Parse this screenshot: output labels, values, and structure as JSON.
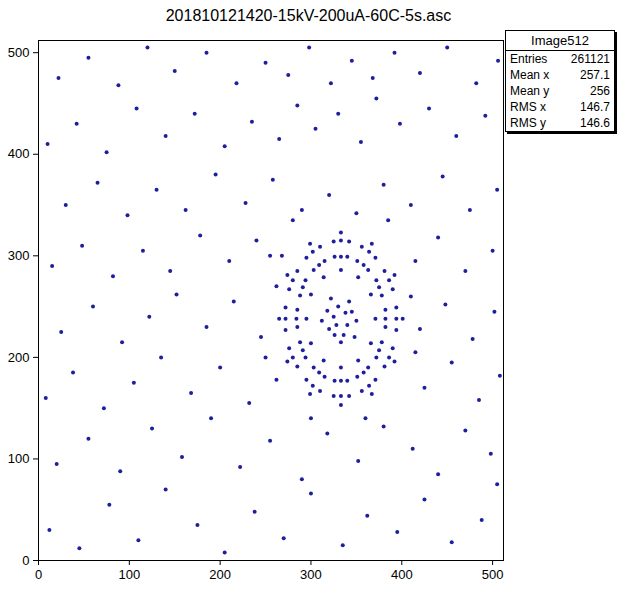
{
  "chart_data": {
    "type": "scatter",
    "title": "201810121420-15kV-200uA-60C-5s.asc",
    "color": "#1f1f9e",
    "marker": "dot",
    "xlim": [
      0,
      512
    ],
    "ylim": [
      0,
      512
    ],
    "xticks": [
      0,
      100,
      200,
      300,
      400,
      500
    ],
    "yticks": [
      0,
      100,
      200,
      300,
      400,
      500
    ],
    "grid": false,
    "stats_box": {
      "title": "Image512",
      "rows": [
        {
          "label": "Entries",
          "value": 261121
        },
        {
          "label": "Mean x",
          "value": 257.1
        },
        {
          "label": "Mean y",
          "value": 256
        },
        {
          "label": "RMS x",
          "value": 146.7
        },
        {
          "label": "RMS y",
          "value": 146.6
        }
      ]
    },
    "x": [
      394,
      272,
      333,
      333,
      394,
      272,
      394,
      272,
      390,
      276,
      390,
      276,
      386,
      280,
      386,
      280,
      381,
      285,
      381,
      285,
      371,
      295,
      371,
      295,
      364,
      302,
      364,
      302,
      356,
      310,
      356,
      310,
      342,
      325,
      342,
      325,
      382,
      284,
      333,
      333,
      382,
      285,
      382,
      285,
      378,
      288,
      378,
      288,
      375,
      291,
      375,
      291,
      372,
      294,
      372,
      294,
      363,
      303,
      363,
      303,
      358,
      309,
      358,
      309,
      351,
      315,
      351,
      315,
      340,
      326,
      340,
      326,
      401,
      265,
      333,
      333,
      392,
      274,
      392,
      274,
      367,
      299,
      367,
      299,
      371,
      295,
      333,
      333,
      366,
      300,
      366,
      300,
      352,
      314,
      352,
      314,
      325,
      340,
      330,
      345,
      320,
      336,
      350,
      318,
      328,
      342,
      322,
      333,
      312,
      348,
      338,
      326,
      12,
      45,
      78,
      110,
      140,
      175,
      205,
      238,
      270,
      300,
      335,
      362,
      395,
      425,
      455,
      488,
      505,
      20,
      55,
      90,
      125,
      158,
      190,
      222,
      255,
      290,
      318,
      352,
      380,
      412,
      440,
      470,
      498,
      8,
      38,
      72,
      105,
      135,
      168,
      200,
      232,
      262,
      425,
      455,
      485,
      508,
      25,
      60,
      92,
      122,
      152,
      185,
      215,
      245,
      262,
      420,
      448,
      478,
      502,
      15,
      48,
      82,
      115,
      145,
      178,
      210,
      240,
      268,
      415,
      440,
      470,
      500,
      30,
      65,
      98,
      130,
      162,
      195,
      228,
      258,
      290,
      320,
      350,
      380,
      410,
      445,
      475,
      505,
      10,
      42,
      75,
      108,
      140,
      172,
      205,
      235,
      265,
      285,
      305,
      330,
      355,
      372,
      398,
      430,
      460,
      492,
      22,
      55,
      88,
      120,
      150,
      185,
      218,
      250,
      275,
      298,
      322,
      345,
      368,
      392,
      420,
      450,
      482,
      506,
      250,
      410,
      300,
      360,
      255,
      415,
      280,
      385
    ],
    "y": [
      238,
      238,
      315,
      162,
      249,
      249,
      227,
      227,
      267,
      267,
      209,
      209,
      276,
      276,
      200,
      200,
      285,
      285,
      191,
      191,
      298,
      298,
      178,
      178,
      304,
      304,
      172,
      172,
      309,
      309,
      167,
      167,
      314,
      314,
      162,
      162,
      238,
      238,
      299,
      177,
      247,
      247,
      230,
      230,
      261,
      261,
      215,
      215,
      269,
      269,
      207,
      207,
      276,
      276,
      200,
      200,
      286,
      286,
      190,
      190,
      291,
      291,
      185,
      185,
      295,
      295,
      181,
      181,
      299,
      299,
      177,
      177,
      238,
      238,
      323,
      153,
      281,
      281,
      196,
      196,
      312,
      312,
      164,
      164,
      238,
      238,
      286,
      190,
      262,
      262,
      214,
      214,
      279,
      279,
      197,
      197,
      240,
      232,
      250,
      245,
      228,
      222,
      236,
      246,
      232,
      255,
      258,
      215,
      236,
      220,
      244,
      222,
      30,
      12,
      55,
      20,
      70,
      35,
      8,
      48,
      22,
      66,
      15,
      44,
      28,
      60,
      18,
      40,
      75,
      95,
      120,
      88,
      130,
      102,
      140,
      92,
      118,
      80,
      125,
      98,
      132,
      110,
      85,
      128,
      105,
      160,
      185,
      150,
      175,
      200,
      165,
      190,
      155,
      178,
      170,
      195,
      158,
      182,
      225,
      250,
      215,
      240,
      262,
      230,
      255,
      220,
      270,
      228,
      252,
      218,
      245,
      290,
      310,
      280,
      305,
      285,
      320,
      295,
      315,
      300,
      295,
      318,
      285,
      305,
      350,
      372,
      340,
      365,
      345,
      380,
      352,
      375,
      345,
      360,
      342,
      370,
      350,
      378,
      345,
      365,
      410,
      430,
      402,
      445,
      418,
      440,
      408,
      432,
      415,
      448,
      425,
      440,
      412,
      455,
      430,
      445,
      418,
      438,
      475,
      495,
      468,
      505,
      482,
      500,
      470,
      490,
      478,
      505,
      470,
      492,
      475,
      500,
      480,
      505,
      470,
      492,
      200,
      260,
      140,
      140,
      300,
      205,
      335,
      335
    ]
  }
}
